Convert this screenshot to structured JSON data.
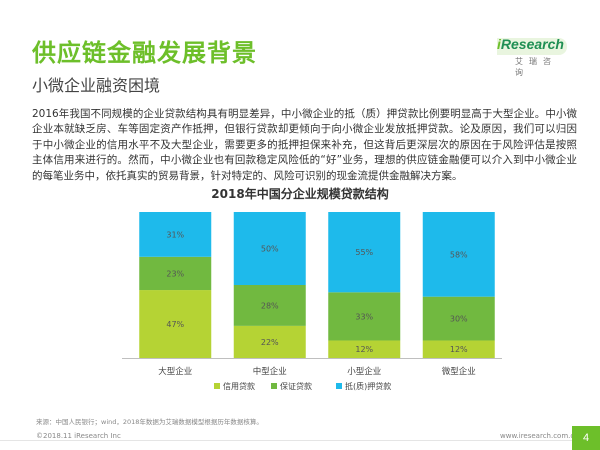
{
  "header": {
    "title": "供应链金融发展背景",
    "subtitle": "小微企业融资困境"
  },
  "logo": {
    "word_i": "i",
    "word_rest": "Research",
    "sub": "艾瑞咨询"
  },
  "intro": "2016年我国不同规模的企业贷款结构具有明显差异，中小微企业的抵（质）押贷款比例要明显高于大型企业。中小微企业本就缺乏房、车等固定资产作抵押，但银行贷款却更倾向于向小微企业发放抵押贷款。论及原因，我们可以归因于中小微企业的信用水平不及大型企业，需要更多的抵押担保来补充，但这背后更深层次的原因在于风险评估是按照主体信用来进行的。然而，中小微企业也有回款稳定风险低的“好”业务，理想的供应链金融便可以介入到中小微企业的每笔业务中，依托真实的贸易背景，针对特定的、风险可识别的现金流提供金融解决方案。",
  "chart_data": {
    "type": "bar",
    "stacked": true,
    "title": "2018年中国分企业规模贷款结构",
    "categories": [
      "大型企业",
      "中型企业",
      "小型企业",
      "微型企业"
    ],
    "series": [
      {
        "name": "信用贷款",
        "values": [
          47,
          22,
          12,
          12
        ],
        "labels": [
          "47%",
          "22%",
          "12%",
          "12%"
        ],
        "color": "#b5d334"
      },
      {
        "name": "保证贷款",
        "values": [
          23,
          28,
          33,
          30
        ],
        "labels": [
          "23%",
          "28%",
          "33%",
          "30%"
        ],
        "color": "#71b940"
      },
      {
        "name": "抵(质)押贷款",
        "values": [
          31,
          50,
          55,
          58
        ],
        "labels": [
          "31%",
          "50%",
          "55%",
          "58%"
        ],
        "color": "#1ebaeb"
      }
    ],
    "legend_position": "bottom",
    "grid": false
  },
  "footer": {
    "source": "来源：中国人民银行；wind，2018年数据为艾瑞数据模型根据历年数据核算。",
    "copyright": "©2018.11 iResearch Inc",
    "url": "www.iresearch.com.cn",
    "page": "4"
  }
}
